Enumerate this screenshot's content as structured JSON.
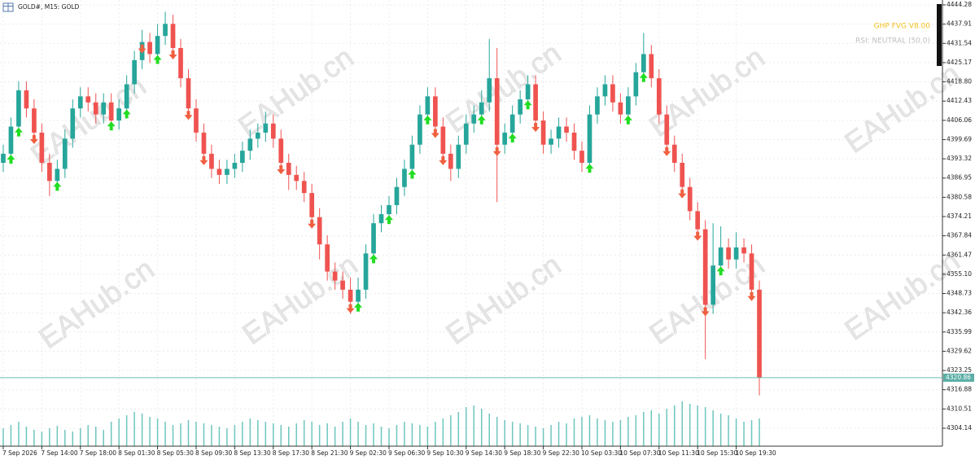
{
  "header": {
    "symbol": "GOLD#, M15: GOLD",
    "indicator": "GHP FVG V8.00",
    "rsi": "RSI: NEUTRAL (50.0)"
  },
  "watermark": "EAHub.cn",
  "chart_data": {
    "type": "candlestick",
    "up_color": "#26a69a",
    "down_color": "#ef5350",
    "buy_color": "#22dd22",
    "sell_color": "#f06040",
    "volume_color": "#6ec6bd",
    "open": [
      4392,
      4395,
      4404,
      4416,
      4410,
      4402,
      4392,
      4386,
      4390,
      4400,
      4410,
      4414,
      4412,
      4408,
      4412,
      4406,
      4410,
      4418,
      4426,
      4432,
      4428,
      4434,
      4438,
      4430,
      4420,
      4410,
      4402,
      4395,
      4390,
      4388,
      4390,
      4392,
      4396,
      4400,
      4402,
      4405,
      4400,
      4392,
      4388,
      4386,
      4382,
      4374,
      4365,
      4356,
      4353,
      4350,
      4346,
      4350,
      4362,
      4372,
      4375,
      4378,
      4384,
      4390,
      4398,
      4408,
      4414,
      4404,
      4395,
      4390,
      4398,
      4405,
      4408,
      4412,
      4420,
      4398,
      4402,
      4408,
      4413,
      4418,
      4406,
      4398,
      4400,
      4404,
      4402,
      4396,
      4392,
      4408,
      4414,
      4418,
      4412,
      4408,
      4414,
      4422,
      4428,
      4420,
      4408,
      4398,
      4392,
      4384,
      4376,
      4370,
      4345,
      4358,
      4364,
      4360,
      4364,
      4362,
      4350
    ],
    "high": [
      4398,
      4407,
      4419,
      4419,
      4413,
      4405,
      4395,
      4393,
      4403,
      4413,
      4417,
      4417,
      4415,
      4415,
      4415,
      4413,
      4421,
      4429,
      4436,
      4435,
      4438,
      4442,
      4441,
      4433,
      4423,
      4413,
      4405,
      4398,
      4393,
      4393,
      4395,
      4399,
      4403,
      4405,
      4409,
      4408,
      4403,
      4395,
      4391,
      4389,
      4385,
      4377,
      4368,
      4359,
      4356,
      4354,
      4354,
      4365,
      4375,
      4378,
      4381,
      4387,
      4393,
      4401,
      4411,
      4417,
      4417,
      4407,
      4398,
      4401,
      4408,
      4411,
      4416,
      4433,
      4430,
      4405,
      4411,
      4416,
      4421,
      4421,
      4409,
      4403,
      4407,
      4407,
      4405,
      4399,
      4411,
      4417,
      4421,
      4421,
      4415,
      4417,
      4425,
      4435,
      4431,
      4423,
      4411,
      4401,
      4395,
      4387,
      4379,
      4373,
      4372,
      4371,
      4367,
      4369,
      4367,
      4365,
      4353
    ],
    "low": [
      4389,
      4392,
      4401,
      4407,
      4399,
      4389,
      4381,
      4383,
      4387,
      4397,
      4407,
      4409,
      4405,
      4405,
      4403,
      4403,
      4407,
      4415,
      4423,
      4425,
      4425,
      4431,
      4427,
      4417,
      4407,
      4399,
      4392,
      4387,
      4385,
      4385,
      4387,
      4389,
      4393,
      4397,
      4399,
      4397,
      4389,
      4383,
      4383,
      4379,
      4371,
      4360,
      4353,
      4350,
      4347,
      4342,
      4343,
      4347,
      4359,
      4369,
      4372,
      4375,
      4381,
      4387,
      4395,
      4405,
      4401,
      4392,
      4386,
      4387,
      4395,
      4402,
      4405,
      4409,
      4379,
      4395,
      4399,
      4405,
      4410,
      4403,
      4395,
      4395,
      4397,
      4399,
      4393,
      4389,
      4389,
      4405,
      4411,
      4409,
      4405,
      4405,
      4411,
      4419,
      4417,
      4405,
      4395,
      4389,
      4381,
      4373,
      4367,
      4327,
      4342,
      4355,
      4357,
      4357,
      4359,
      4347,
      4315
    ],
    "close": [
      4395,
      4404,
      4416,
      4410,
      4402,
      4392,
      4386,
      4390,
      4400,
      4410,
      4414,
      4412,
      4408,
      4412,
      4406,
      4410,
      4418,
      4426,
      4432,
      4428,
      4434,
      4438,
      4430,
      4420,
      4410,
      4402,
      4395,
      4390,
      4388,
      4390,
      4392,
      4396,
      4400,
      4402,
      4405,
      4400,
      4392,
      4388,
      4386,
      4382,
      4374,
      4365,
      4356,
      4353,
      4350,
      4346,
      4350,
      4362,
      4372,
      4375,
      4378,
      4384,
      4390,
      4398,
      4408,
      4414,
      4404,
      4395,
      4390,
      4398,
      4405,
      4408,
      4412,
      4420,
      4398,
      4402,
      4408,
      4413,
      4418,
      4406,
      4398,
      4400,
      4404,
      4402,
      4396,
      4392,
      4408,
      4414,
      4418,
      4412,
      4408,
      4414,
      4422,
      4428,
      4420,
      4408,
      4398,
      4392,
      4384,
      4376,
      4370,
      4345,
      4358,
      4364,
      4360,
      4364,
      4362,
      4350,
      4320.86
    ],
    "volume": [
      22,
      26,
      30,
      24,
      20,
      18,
      22,
      25,
      20,
      18,
      22,
      26,
      24,
      20,
      30,
      34,
      38,
      42,
      40,
      36,
      34,
      30,
      26,
      28,
      32,
      30,
      28,
      26,
      24,
      22,
      26,
      30,
      34,
      32,
      30,
      28,
      26,
      24,
      28,
      32,
      30,
      26,
      28,
      24,
      30,
      34,
      30,
      26,
      28,
      24,
      22,
      26,
      30,
      28,
      26,
      24,
      30,
      34,
      38,
      42,
      48,
      50,
      46,
      40,
      36,
      32,
      30,
      28,
      26,
      24,
      22,
      26,
      30,
      28,
      34,
      36,
      38,
      34,
      32,
      30,
      32,
      36,
      38,
      42,
      44,
      40,
      46,
      50,
      55,
      52,
      50,
      48,
      44,
      40,
      38,
      34,
      30,
      32,
      34
    ],
    "buy_signals": [
      1,
      2,
      7,
      14,
      16,
      20,
      46,
      48,
      50,
      53,
      55,
      62,
      66,
      68,
      76,
      81,
      83,
      93
    ],
    "sell_signals": [
      4,
      18,
      22,
      24,
      26,
      36,
      40,
      45,
      56,
      57,
      64,
      69,
      86,
      88,
      90,
      91,
      97
    ],
    "current_price": 4320.86,
    "xlim": [
      -0.42,
      121.73
    ],
    "ylim": [
      4298.2,
      4445.9
    ],
    "yticks": [
      4444.28,
      4437.91,
      4431.54,
      4425.17,
      {
        "value": 4418.8,
        "label": "4418.80"
      },
      4412.43,
      4406.06,
      4399.69,
      4393.32,
      4386.95,
      4380.58,
      4374.21,
      4367.84,
      4361.47,
      {
        "value": 4355.1,
        "label": "4355.10"
      },
      4348.73,
      4342.36,
      4335.99,
      4329.62,
      4323.25,
      4316.88,
      4310.51,
      4304.14
    ],
    "xticks": [
      {
        "value": 0,
        "label": "7 Sep 2026"
      },
      {
        "value": 5,
        "label": "7 Sep 14:00"
      },
      {
        "value": 10,
        "label": "7 Sep 18:00"
      },
      {
        "value": 15,
        "label": "8 Sep 01:30"
      },
      {
        "value": 20,
        "label": "8 Sep 05:30"
      },
      {
        "value": 25,
        "label": "8 Sep 09:30"
      },
      {
        "value": 30,
        "label": "8 Sep 13:30"
      },
      {
        "value": 35,
        "label": "8 Sep 17:30"
      },
      {
        "value": 40,
        "label": "8 Sep 21:30"
      },
      {
        "value": 45,
        "label": "9 Sep 02:30"
      },
      {
        "value": 50,
        "label": "9 Sep 06:30"
      },
      {
        "value": 55,
        "label": "9 Sep 10:30"
      },
      {
        "value": 60,
        "label": "9 Sep 14:30"
      },
      {
        "value": 65,
        "label": "9 Sep 18:30"
      },
      {
        "value": 70,
        "label": "9 Sep 22:30"
      },
      {
        "value": 75,
        "label": "10 Sep 03:30"
      },
      {
        "value": 80,
        "label": "10 Sep 07:30"
      },
      {
        "value": 85,
        "label": "10 Sep 11:30"
      },
      {
        "value": 90,
        "label": "10 Sep 15:30"
      },
      {
        "value": 95,
        "label": "10 Sep 19:30"
      }
    ],
    "grid": true
  }
}
